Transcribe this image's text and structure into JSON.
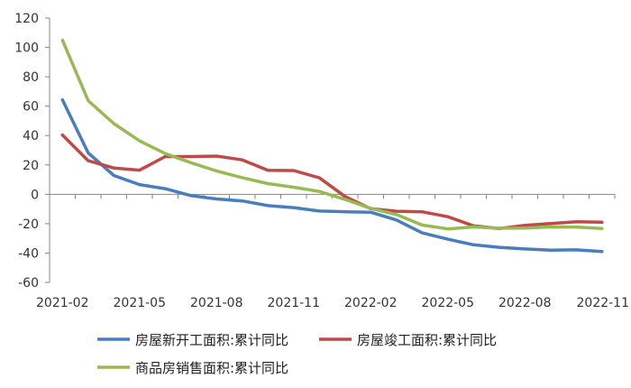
{
  "chart_data": {
    "type": "line",
    "title": "",
    "xlabel": "",
    "ylabel": "",
    "ylim": [
      -60,
      120
    ],
    "yticks": [
      -60,
      -40,
      -20,
      0,
      20,
      40,
      60,
      80,
      100,
      120
    ],
    "categories": [
      "2021-02",
      "2021-03",
      "2021-04",
      "2021-05",
      "2021-06",
      "2021-07",
      "2021-08",
      "2021-09",
      "2021-10",
      "2021-11",
      "2021-12",
      "2022-01",
      "2022-02",
      "2022-03",
      "2022-04",
      "2022-05",
      "2022-06",
      "2022-07",
      "2022-08",
      "2022-09",
      "2022-10",
      "2022-11"
    ],
    "xtick_labels": [
      "2021-02",
      "2021-05",
      "2021-08",
      "2021-11",
      "2022-02",
      "2022-05",
      "2022-08",
      "2022-11"
    ],
    "series": [
      {
        "name": "房屋新开工面积:累计同比",
        "color": "#4a7ebb",
        "values": [
          64.3,
          28.2,
          12.8,
          6.6,
          3.8,
          -0.9,
          -3.2,
          -4.5,
          -7.7,
          -9.1,
          -11.4,
          -11.9,
          -12.2,
          -17.5,
          -26.3,
          -30.6,
          -34.4,
          -36.1,
          -37.2,
          -38.0,
          -37.8,
          -39.0
        ]
      },
      {
        "name": "房屋竣工面积:累计同比",
        "color": "#be4b48",
        "values": [
          40.4,
          22.9,
          17.9,
          16.4,
          25.7,
          25.7,
          26.0,
          23.4,
          16.3,
          16.2,
          11.2,
          -1.5,
          -9.8,
          -11.5,
          -11.9,
          -15.3,
          -21.5,
          -23.3,
          -21.1,
          -19.9,
          -18.7,
          -19.0
        ]
      },
      {
        "name": "商品房销售面积:累计同比",
        "color": "#98b954",
        "values": [
          104.9,
          63.8,
          48.1,
          36.4,
          27.7,
          21.5,
          15.9,
          11.3,
          7.3,
          4.8,
          1.9,
          -3.5,
          -9.6,
          -13.8,
          -20.9,
          -23.6,
          -22.2,
          -23.1,
          -23.0,
          -22.2,
          -22.3,
          -23.3
        ]
      }
    ],
    "legend_position": "bottom"
  }
}
